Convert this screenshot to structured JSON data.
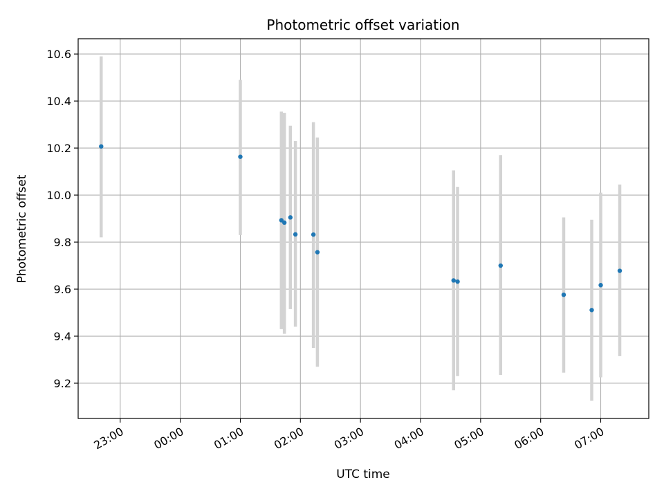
{
  "chart_data": {
    "type": "scatter",
    "title": "Photometric offset variation",
    "xlabel": "UTC time",
    "ylabel": "Photometric offset",
    "grid": true,
    "xlim": [
      "22:18",
      "07:48"
    ],
    "ylim": [
      9.05,
      10.665
    ],
    "x_ticks": [
      "23:00",
      "00:00",
      "01:00",
      "02:00",
      "03:00",
      "04:00",
      "05:00",
      "06:00",
      "07:00"
    ],
    "y_ticks": [
      "9.2",
      "9.4",
      "9.6",
      "9.8",
      "10.0",
      "10.2",
      "10.4",
      "10.6"
    ],
    "colors": {
      "point": "#1f77b4",
      "errorbar": "#d3d3d3",
      "grid": "#b0b0b0"
    },
    "series": [
      {
        "points": [
          {
            "x": "22:41",
            "y": 10.207,
            "ylo": 9.82,
            "yhi": 10.59
          },
          {
            "x": "01:00",
            "y": 10.163,
            "ylo": 9.83,
            "yhi": 10.49
          },
          {
            "x": "01:41",
            "y": 9.893,
            "ylo": 9.43,
            "yhi": 10.355
          },
          {
            "x": "01:44",
            "y": 9.883,
            "ylo": 9.41,
            "yhi": 10.35
          },
          {
            "x": "01:50",
            "y": 9.905,
            "ylo": 9.515,
            "yhi": 10.295
          },
          {
            "x": "01:55",
            "y": 9.833,
            "ylo": 9.44,
            "yhi": 10.23
          },
          {
            "x": "02:13",
            "y": 9.832,
            "ylo": 9.35,
            "yhi": 10.31
          },
          {
            "x": "02:17",
            "y": 9.757,
            "ylo": 9.27,
            "yhi": 10.245
          },
          {
            "x": "04:33",
            "y": 9.637,
            "ylo": 9.17,
            "yhi": 10.105
          },
          {
            "x": "04:37",
            "y": 9.632,
            "ylo": 9.23,
            "yhi": 10.035
          },
          {
            "x": "05:20",
            "y": 9.7,
            "ylo": 9.235,
            "yhi": 10.17
          },
          {
            "x": "06:23",
            "y": 9.576,
            "ylo": 9.245,
            "yhi": 9.905
          },
          {
            "x": "06:51",
            "y": 9.511,
            "ylo": 9.125,
            "yhi": 9.895
          },
          {
            "x": "07:00",
            "y": 9.617,
            "ylo": 9.225,
            "yhi": 10.01
          },
          {
            "x": "07:19",
            "y": 9.678,
            "ylo": 9.315,
            "yhi": 10.045
          }
        ]
      }
    ]
  }
}
